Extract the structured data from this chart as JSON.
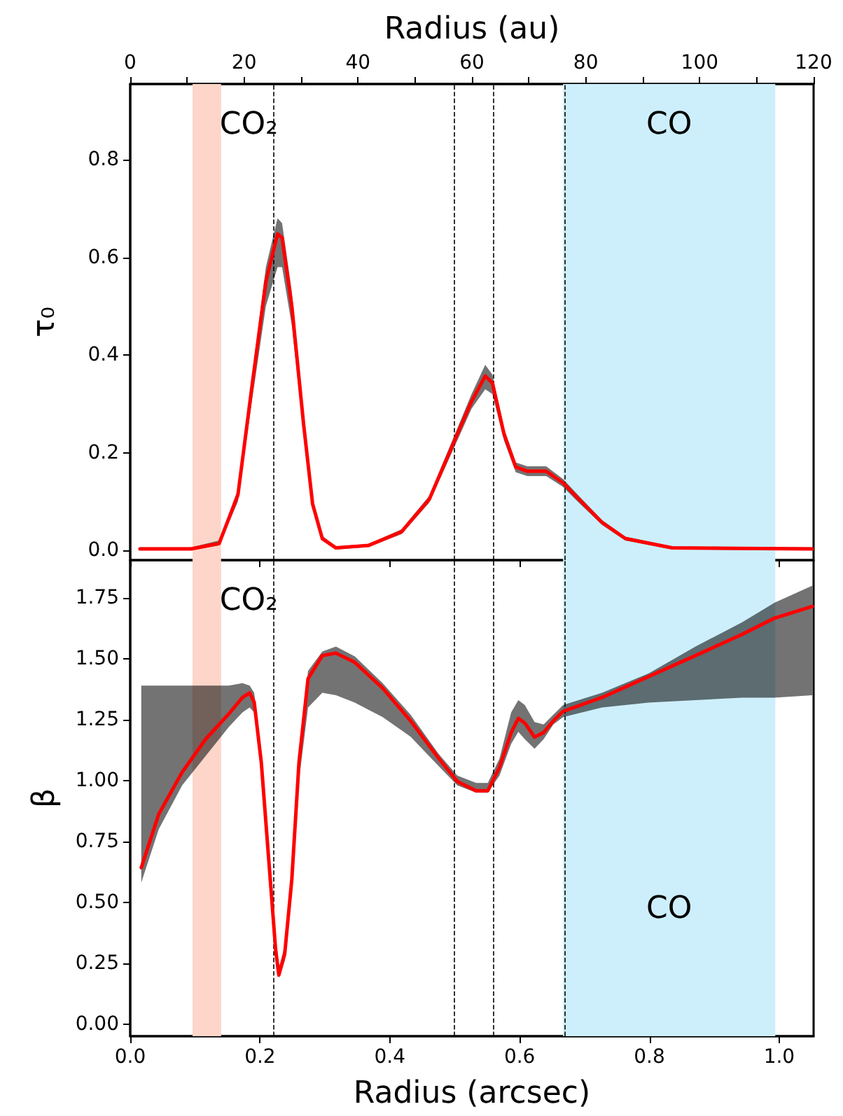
{
  "chart_data": [
    {
      "type": "line",
      "x2label": "Radius (au)",
      "ylabel": "τ₀",
      "xlim": [
        0,
        1.053
      ],
      "ylim": [
        -0.02,
        0.955
      ],
      "x2lim": [
        0,
        120
      ],
      "tick_labels": "y",
      "xticks": [
        0,
        0.2,
        0.4,
        0.6,
        0.8,
        1.0
      ],
      "x2ticks": [
        0,
        {
          "value": 10,
          "label": null
        },
        20,
        {
          "value": 30,
          "label": null
        },
        40,
        {
          "value": 50,
          "label": null
        },
        60,
        {
          "value": 70,
          "label": null
        },
        80,
        {
          "value": 90,
          "label": null
        },
        100,
        {
          "value": 110,
          "label": null
        },
        120
      ],
      "yticks": [
        {
          "value": 0,
          "label": "0.0"
        },
        {
          "value": 0.2,
          "label": "0.2"
        },
        {
          "value": 0.4,
          "label": "0.4"
        },
        {
          "value": 0.6,
          "label": "0.6"
        },
        {
          "value": 0.8,
          "label": "0.8"
        }
      ],
      "grid": false,
      "marker": "none",
      "line_style": "solid",
      "x": [
        0.015,
        0.094,
        0.137,
        0.166,
        0.188,
        0.209,
        0.227,
        0.234,
        0.249,
        0.267,
        0.281,
        0.296,
        0.317,
        0.367,
        0.418,
        0.461,
        0.504,
        0.526,
        0.547,
        0.558,
        0.576,
        0.594,
        0.612,
        0.641,
        0.667,
        0.691,
        0.727,
        0.763,
        0.835,
        1.051
      ],
      "series": [
        {
          "color": "#ff0000",
          "values": [
            0.003,
            0.003,
            0.014,
            0.114,
            0.34,
            0.55,
            0.648,
            0.64,
            0.5,
            0.26,
            0.095,
            0.024,
            0.005,
            0.01,
            0.038,
            0.105,
            0.238,
            0.305,
            0.357,
            0.343,
            0.238,
            0.171,
            0.162,
            0.162,
            0.138,
            0.105,
            0.057,
            0.024,
            0.005,
            0.003
          ],
          "lower": [
            0.0,
            0.0,
            0.01,
            0.1,
            0.31,
            0.5,
            0.58,
            0.58,
            0.46,
            0.24,
            0.085,
            0.02,
            0.002,
            0.007,
            0.033,
            0.098,
            0.225,
            0.29,
            0.33,
            0.32,
            0.225,
            0.16,
            0.152,
            0.152,
            0.13,
            0.098,
            0.052,
            0.02,
            0.002,
            0.0
          ],
          "upper": [
            0.006,
            0.006,
            0.02,
            0.125,
            0.36,
            0.58,
            0.68,
            0.67,
            0.53,
            0.28,
            0.105,
            0.03,
            0.008,
            0.013,
            0.043,
            0.112,
            0.25,
            0.32,
            0.38,
            0.36,
            0.25,
            0.18,
            0.172,
            0.172,
            0.146,
            0.112,
            0.062,
            0.028,
            0.008,
            0.006
          ]
        }
      ],
      "ref_lines": [
        {
          "axis": "x",
          "value": 0.22,
          "color": "#000000",
          "line_style": "dashed"
        },
        {
          "axis": "x",
          "value": 0.499,
          "color": "#000000",
          "line_style": "dashed"
        },
        {
          "axis": "x",
          "value": 0.56,
          "color": "#000000",
          "line_style": "dashed"
        },
        {
          "axis": "x",
          "value": 0.667,
          "color": "#000000",
          "line_style": "dashed"
        }
      ],
      "bands": [
        {
          "axis": "x",
          "from": 0.096,
          "to": 0.14,
          "label": "CO₂",
          "color": "#fdd5c9"
        },
        {
          "axis": "x",
          "from": 0.667,
          "to": 0.994,
          "label": "CO",
          "color": "#cdeffb"
        }
      ]
    },
    {
      "type": "line",
      "xlabel": "Radius (arcsec)",
      "ylabel": "β",
      "xlim": [
        0,
        1.053
      ],
      "ylim": [
        -0.05,
        1.905
      ],
      "xticks": [
        {
          "value": 0,
          "label": "0.0"
        },
        {
          "value": 0.2,
          "label": "0.2"
        },
        {
          "value": 0.4,
          "label": "0.4"
        },
        {
          "value": 0.6,
          "label": "0.6"
        },
        {
          "value": 0.8,
          "label": "0.8"
        },
        {
          "value": 1.0,
          "label": "1.0"
        }
      ],
      "yticks": [
        {
          "value": 0,
          "label": "0.00"
        },
        {
          "value": 0.25,
          "label": "0.25"
        },
        {
          "value": 0.5,
          "label": "0.50"
        },
        {
          "value": 0.75,
          "label": "0.75"
        },
        {
          "value": 1.0,
          "label": "1.00"
        },
        {
          "value": 1.25,
          "label": "1.25"
        },
        {
          "value": 1.5,
          "label": "1.50"
        },
        {
          "value": 1.75,
          "label": "1.75"
        }
      ],
      "grid": false,
      "marker": "none",
      "line_style": "solid",
      "x": [
        0.017,
        0.044,
        0.08,
        0.116,
        0.152,
        0.173,
        0.184,
        0.191,
        0.202,
        0.213,
        0.224,
        0.229,
        0.238,
        0.249,
        0.26,
        0.274,
        0.296,
        0.317,
        0.346,
        0.389,
        0.432,
        0.475,
        0.504,
        0.533,
        0.551,
        0.569,
        0.587,
        0.598,
        0.608,
        0.623,
        0.637,
        0.652,
        0.667,
        0.727,
        0.799,
        0.871,
        0.943,
        0.993,
        1.051
      ],
      "series": [
        {
          "color": "#ff0000",
          "values": [
            0.642,
            0.862,
            1.034,
            1.169,
            1.274,
            1.341,
            1.36,
            1.322,
            1.073,
            0.69,
            0.307,
            0.201,
            0.287,
            0.594,
            1.073,
            1.418,
            1.513,
            1.523,
            1.485,
            1.379,
            1.245,
            1.092,
            0.996,
            0.958,
            0.958,
            1.054,
            1.197,
            1.255,
            1.236,
            1.178,
            1.197,
            1.245,
            1.284,
            1.341,
            1.427,
            1.513,
            1.6,
            1.667,
            1.715
          ],
          "lower": [
            0.58,
            0.8,
            0.98,
            1.1,
            1.22,
            1.28,
            1.3,
            1.28,
            1.03,
            0.65,
            0.28,
            0.19,
            0.26,
            0.55,
            1.0,
            1.3,
            1.36,
            1.35,
            1.32,
            1.26,
            1.18,
            1.06,
            0.98,
            0.95,
            0.95,
            1.02,
            1.15,
            1.2,
            1.17,
            1.13,
            1.17,
            1.23,
            1.26,
            1.3,
            1.32,
            1.33,
            1.34,
            1.34,
            1.35
          ],
          "upper": [
            1.39,
            1.39,
            1.39,
            1.39,
            1.39,
            1.4,
            1.39,
            1.36,
            1.12,
            0.73,
            0.34,
            0.23,
            0.32,
            0.63,
            1.12,
            1.45,
            1.53,
            1.55,
            1.51,
            1.4,
            1.27,
            1.11,
            1.02,
            0.99,
            0.99,
            1.09,
            1.28,
            1.33,
            1.31,
            1.24,
            1.23,
            1.27,
            1.31,
            1.36,
            1.44,
            1.55,
            1.65,
            1.73,
            1.8
          ]
        }
      ],
      "ref_lines": [
        {
          "axis": "x",
          "value": 0.22,
          "color": "#000000",
          "line_style": "dashed"
        },
        {
          "axis": "x",
          "value": 0.499,
          "color": "#000000",
          "line_style": "dashed"
        },
        {
          "axis": "x",
          "value": 0.56,
          "color": "#000000",
          "line_style": "dashed"
        },
        {
          "axis": "x",
          "value": 0.667,
          "color": "#000000",
          "line_style": "dashed"
        }
      ],
      "bands": [
        {
          "axis": "x",
          "from": 0.096,
          "to": 0.14,
          "label": "CO₂",
          "color": "#fdd5c9"
        },
        {
          "axis": "x",
          "from": 0.667,
          "to": 0.994,
          "label": "CO",
          "color": "#cdeffb"
        }
      ]
    }
  ]
}
